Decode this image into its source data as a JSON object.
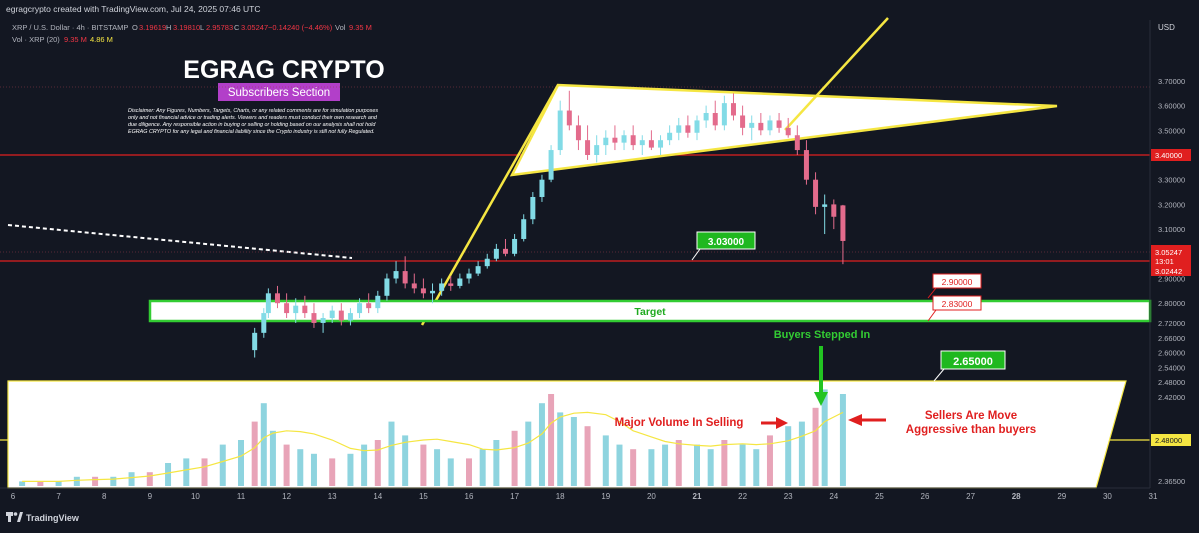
{
  "header": {
    "credit": "egragcrypto created with TradingView.com, Jul 24, 2025 07:46 UTC",
    "symbol": "XRP / U.S. Dollar · 4h · BITSTAMP",
    "o_label": "O",
    "o_value": "3.19619",
    "h_label": "H",
    "h_value": "3.19810",
    "l_label": "L",
    "l_value": "2.95783",
    "c_label": "C",
    "c_value": "3.05247",
    "change": "−0.14240 (−4.46%)",
    "vol_label": "Vol",
    "vol_value": "9.35 M",
    "vol_indicator": "Vol · XRP (20)",
    "vol_now": "9.35 M",
    "vol_ma": "4.86 M"
  },
  "overlay": {
    "title": "EGRAG CRYPTO",
    "subtitle": "Subscribers Section",
    "disclaimer": [
      "Disclaimer: Any Figures, Numbers, Targets, Charts, or any related comments are for simulation purposes",
      "only and not financial advice or trading alerts. Viewers and readers must conduct their own research and",
      "due diligence. Any responsible action in buying or selling or holding based on our analysis shall not hold",
      "EGRAG CRYPTO for any legal and financial liability since the Crypto industry is still not fully Regulated."
    ]
  },
  "colors": {
    "background": "#131722",
    "up": "#82dbe6",
    "down": "#e36b8c",
    "support_green": "#33cc33",
    "yellow": "#f5e642",
    "red_line": "#e01f1f",
    "vol_up": "#8ed4df",
    "vol_down": "#e8a4b8"
  },
  "chart_data": {
    "type": "candlestick",
    "currency": "USD",
    "y_ticks": [
      "3.70000",
      "3.60000",
      "3.50000",
      "3.40000",
      "3.30000",
      "3.20000",
      "3.10000",
      "3.00000",
      "2.90000",
      "2.80000",
      "2.72000",
      "2.66000",
      "2.60000",
      "2.54000",
      "2.48000",
      "2.42000",
      "2.36500"
    ],
    "x_ticks": [
      "6",
      "7",
      "8",
      "9",
      "10",
      "11",
      "12",
      "13",
      "14",
      "15",
      "16",
      "17",
      "18",
      "19",
      "20",
      "21",
      "22",
      "23",
      "24",
      "25",
      "26",
      "27",
      "28",
      "29",
      "30",
      "31"
    ],
    "bold_x_ticks": [
      "21",
      "28"
    ],
    "candles": [
      [
        11.3,
        2.61,
        2.7,
        2.58,
        2.68
      ],
      [
        11.5,
        2.68,
        2.78,
        2.66,
        2.76
      ],
      [
        11.6,
        2.76,
        2.86,
        2.74,
        2.84
      ],
      [
        11.8,
        2.84,
        2.87,
        2.78,
        2.8
      ],
      [
        12.0,
        2.8,
        2.84,
        2.74,
        2.76
      ],
      [
        12.2,
        2.76,
        2.82,
        2.72,
        2.79
      ],
      [
        12.4,
        2.79,
        2.83,
        2.74,
        2.76
      ],
      [
        12.6,
        2.76,
        2.8,
        2.7,
        2.72
      ],
      [
        12.8,
        2.72,
        2.76,
        2.68,
        2.74
      ],
      [
        13.0,
        2.74,
        2.79,
        2.72,
        2.77
      ],
      [
        13.2,
        2.77,
        2.8,
        2.71,
        2.73
      ],
      [
        13.4,
        2.73,
        2.78,
        2.71,
        2.76
      ],
      [
        13.6,
        2.76,
        2.82,
        2.74,
        2.8
      ],
      [
        13.8,
        2.8,
        2.84,
        2.76,
        2.78
      ],
      [
        14.0,
        2.78,
        2.85,
        2.76,
        2.83
      ],
      [
        14.2,
        2.83,
        2.92,
        2.81,
        2.9
      ],
      [
        14.4,
        2.9,
        2.97,
        2.88,
        2.93
      ],
      [
        14.6,
        2.93,
        2.99,
        2.86,
        2.88
      ],
      [
        14.8,
        2.88,
        2.92,
        2.84,
        2.86
      ],
      [
        15.0,
        2.86,
        2.9,
        2.82,
        2.84
      ],
      [
        15.2,
        2.84,
        2.88,
        2.8,
        2.85
      ],
      [
        15.4,
        2.85,
        2.9,
        2.83,
        2.88
      ],
      [
        15.6,
        2.88,
        2.91,
        2.85,
        2.87
      ],
      [
        15.8,
        2.87,
        2.92,
        2.86,
        2.9
      ],
      [
        16.0,
        2.9,
        2.94,
        2.88,
        2.92
      ],
      [
        16.2,
        2.92,
        2.97,
        2.91,
        2.95
      ],
      [
        16.4,
        2.95,
        3.0,
        2.94,
        2.98
      ],
      [
        16.6,
        2.98,
        3.04,
        2.97,
        3.02
      ],
      [
        16.8,
        3.02,
        3.06,
        2.99,
        3.0
      ],
      [
        17.0,
        3.0,
        3.08,
        2.99,
        3.06
      ],
      [
        17.2,
        3.06,
        3.16,
        3.05,
        3.14
      ],
      [
        17.4,
        3.14,
        3.25,
        3.12,
        3.23
      ],
      [
        17.6,
        3.23,
        3.32,
        3.21,
        3.3
      ],
      [
        17.8,
        3.3,
        3.44,
        3.29,
        3.42
      ],
      [
        18.0,
        3.42,
        3.62,
        3.4,
        3.58
      ],
      [
        18.2,
        3.58,
        3.66,
        3.5,
        3.52
      ],
      [
        18.4,
        3.52,
        3.56,
        3.42,
        3.46
      ],
      [
        18.6,
        3.46,
        3.52,
        3.38,
        3.4
      ],
      [
        18.8,
        3.4,
        3.48,
        3.37,
        3.44
      ],
      [
        19.0,
        3.44,
        3.5,
        3.4,
        3.47
      ],
      [
        19.2,
        3.47,
        3.52,
        3.42,
        3.45
      ],
      [
        19.4,
        3.45,
        3.5,
        3.42,
        3.48
      ],
      [
        19.6,
        3.48,
        3.52,
        3.42,
        3.44
      ],
      [
        19.8,
        3.44,
        3.48,
        3.4,
        3.46
      ],
      [
        20.0,
        3.46,
        3.5,
        3.42,
        3.43
      ],
      [
        20.2,
        3.43,
        3.48,
        3.4,
        3.46
      ],
      [
        20.4,
        3.46,
        3.52,
        3.44,
        3.49
      ],
      [
        20.6,
        3.49,
        3.55,
        3.46,
        3.52
      ],
      [
        20.8,
        3.52,
        3.56,
        3.47,
        3.49
      ],
      [
        21.0,
        3.49,
        3.56,
        3.46,
        3.54
      ],
      [
        21.2,
        3.54,
        3.6,
        3.51,
        3.57
      ],
      [
        21.4,
        3.57,
        3.62,
        3.5,
        3.52
      ],
      [
        21.6,
        3.52,
        3.64,
        3.5,
        3.61
      ],
      [
        21.8,
        3.61,
        3.65,
        3.54,
        3.56
      ],
      [
        22.0,
        3.56,
        3.6,
        3.48,
        3.51
      ],
      [
        22.2,
        3.51,
        3.56,
        3.46,
        3.53
      ],
      [
        22.4,
        3.53,
        3.57,
        3.48,
        3.5
      ],
      [
        22.6,
        3.5,
        3.56,
        3.48,
        3.54
      ],
      [
        22.8,
        3.54,
        3.57,
        3.49,
        3.51
      ],
      [
        23.0,
        3.51,
        3.55,
        3.47,
        3.48
      ],
      [
        23.2,
        3.48,
        3.52,
        3.4,
        3.42
      ],
      [
        23.4,
        3.42,
        3.46,
        3.28,
        3.3
      ],
      [
        23.6,
        3.3,
        3.33,
        3.16,
        3.19
      ],
      [
        23.8,
        3.19,
        3.24,
        3.08,
        3.2
      ],
      [
        24.0,
        3.2,
        3.22,
        3.1,
        3.15
      ],
      [
        24.2,
        3.196,
        3.198,
        2.958,
        3.052
      ]
    ],
    "volume_bars": [
      [
        6.2,
        1
      ],
      [
        6.6,
        1
      ],
      [
        7.0,
        1
      ],
      [
        7.4,
        2
      ],
      [
        7.8,
        2
      ],
      [
        8.2,
        2
      ],
      [
        8.6,
        3
      ],
      [
        9.0,
        3
      ],
      [
        9.4,
        5
      ],
      [
        9.8,
        6
      ],
      [
        10.2,
        6
      ],
      [
        10.6,
        9
      ],
      [
        11.0,
        10
      ],
      [
        11.3,
        14
      ],
      [
        11.5,
        18
      ],
      [
        11.7,
        12
      ],
      [
        12.0,
        9
      ],
      [
        12.3,
        8
      ],
      [
        12.6,
        7
      ],
      [
        13.0,
        6
      ],
      [
        13.4,
        7
      ],
      [
        13.7,
        9
      ],
      [
        14.0,
        10
      ],
      [
        14.3,
        14
      ],
      [
        14.6,
        11
      ],
      [
        15.0,
        9
      ],
      [
        15.3,
        8
      ],
      [
        15.6,
        6
      ],
      [
        16.0,
        6
      ],
      [
        16.3,
        8
      ],
      [
        16.6,
        10
      ],
      [
        17.0,
        12
      ],
      [
        17.3,
        14
      ],
      [
        17.6,
        18
      ],
      [
        17.8,
        20
      ],
      [
        18.0,
        16
      ],
      [
        18.3,
        15
      ],
      [
        18.6,
        13
      ],
      [
        19.0,
        11
      ],
      [
        19.3,
        9
      ],
      [
        19.6,
        8
      ],
      [
        20.0,
        8
      ],
      [
        20.3,
        9
      ],
      [
        20.6,
        10
      ],
      [
        21.0,
        9
      ],
      [
        21.3,
        8
      ],
      [
        21.6,
        10
      ],
      [
        22.0,
        9
      ],
      [
        22.3,
        8
      ],
      [
        22.6,
        11
      ],
      [
        23.0,
        13
      ],
      [
        23.3,
        14
      ],
      [
        23.6,
        17
      ],
      [
        23.8,
        21
      ],
      [
        24.2,
        20
      ]
    ]
  },
  "levels": {
    "price_3_40": "3.40000",
    "current": "3.05247",
    "countdown": "13:01",
    "low_line": "3.02442",
    "price_2_48": "2.48000",
    "call_3_03": "3.03000",
    "call_2_90": "2.90000",
    "call_2_83": "2.83000",
    "call_2_65": "2.65000"
  },
  "annotations": {
    "target": "Target",
    "buyers": "Buyers Stepped In",
    "major_volume": "Major Volume In Selling",
    "sellers_line1": "Sellers Are Move",
    "sellers_line2": "Aggressive than buyers"
  },
  "footer": {
    "brand": "TradingView"
  }
}
